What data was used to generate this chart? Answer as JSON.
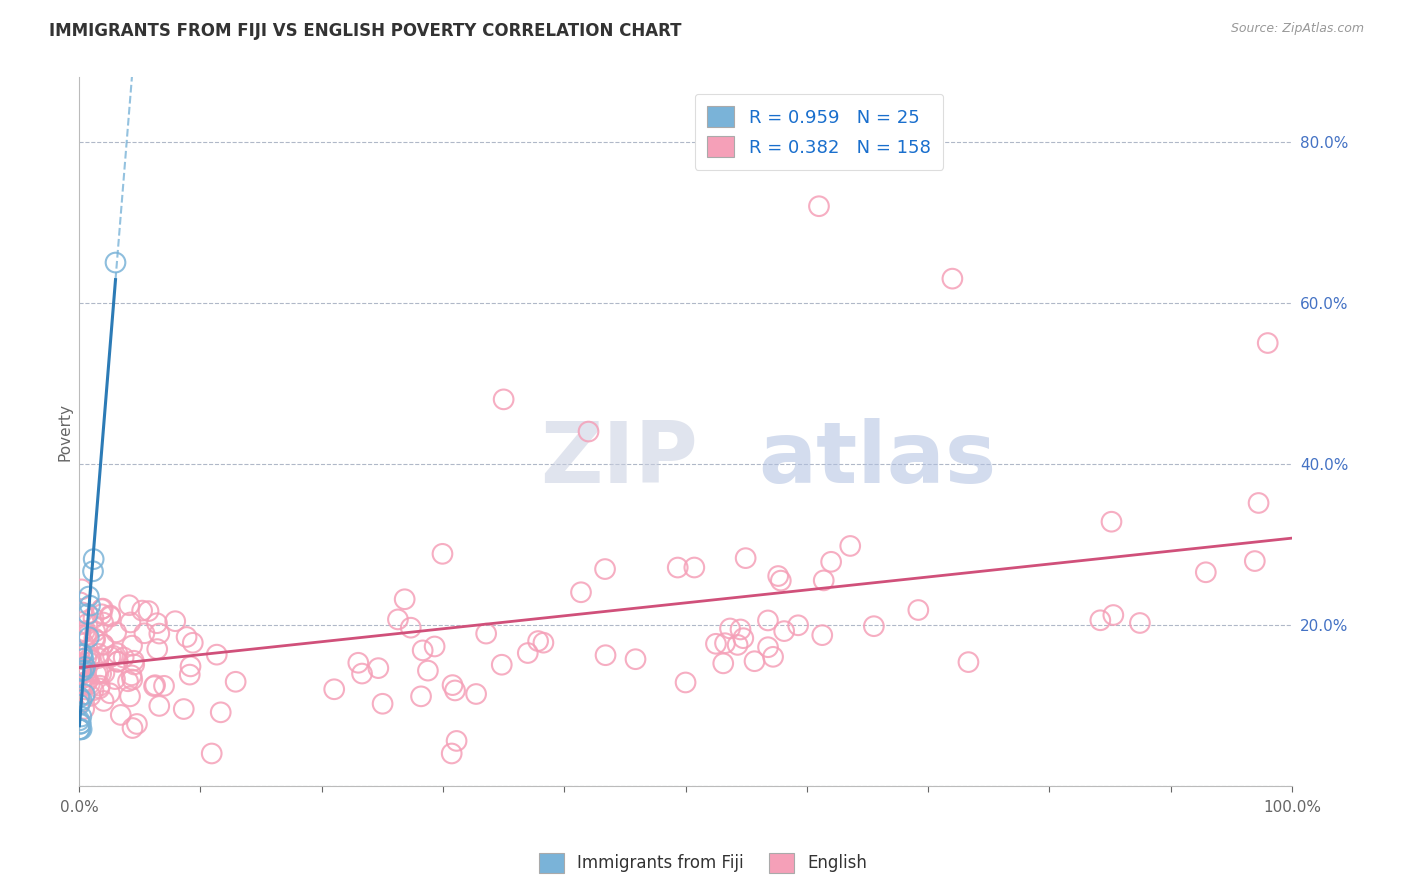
{
  "title": "IMMIGRANTS FROM FIJI VS ENGLISH POVERTY CORRELATION CHART",
  "source_text": "Source: ZipAtlas.com",
  "ylabel": "Poverty",
  "xlim": [
    0,
    1.0
  ],
  "ylim": [
    0,
    0.88
  ],
  "ytick_positions": [
    0.0,
    0.2,
    0.4,
    0.6,
    0.8
  ],
  "ytick_labels": [
    "",
    "20.0%",
    "40.0%",
    "60.0%",
    "80.0%"
  ],
  "fiji_color": "#7ab3d8",
  "fiji_edge_color": "#4a90c4",
  "english_color": "#f5a0b8",
  "english_edge_color": "#e06080",
  "fiji_R": 0.959,
  "fiji_N": 25,
  "english_R": 0.382,
  "english_N": 158,
  "legend_text_color": "#1a6fcd",
  "background_color": "#ffffff",
  "grid_color": "#b0b8c8",
  "watermark_zip_color": "#c8cfe8",
  "watermark_atlas_color": "#b0bce0",
  "title_fontsize": 12,
  "axis_label_fontsize": 11,
  "tick_fontsize": 11,
  "legend_fontsize": 13
}
